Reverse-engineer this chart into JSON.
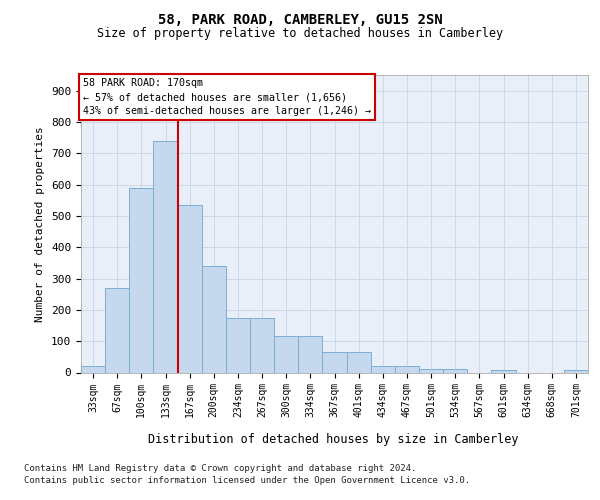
{
  "title": "58, PARK ROAD, CAMBERLEY, GU15 2SN",
  "subtitle": "Size of property relative to detached houses in Camberley",
  "xlabel": "Distribution of detached houses by size in Camberley",
  "ylabel": "Number of detached properties",
  "bin_labels": [
    "33sqm",
    "67sqm",
    "100sqm",
    "133sqm",
    "167sqm",
    "200sqm",
    "234sqm",
    "267sqm",
    "300sqm",
    "334sqm",
    "367sqm",
    "401sqm",
    "434sqm",
    "467sqm",
    "501sqm",
    "534sqm",
    "567sqm",
    "601sqm",
    "634sqm",
    "668sqm",
    "701sqm"
  ],
  "bar_values": [
    20,
    270,
    590,
    740,
    535,
    340,
    175,
    175,
    118,
    118,
    65,
    65,
    20,
    20,
    10,
    10,
    0,
    8,
    0,
    0,
    8
  ],
  "bar_color": "#c5d8ee",
  "bar_edge_color": "#7bafd4",
  "ref_line_color": "#cc0000",
  "annotation_box_edge_color": "#cc0000",
  "grid_color": "#ccd8e8",
  "background_color": "#e8eff8",
  "ylim": [
    0,
    950
  ],
  "yticks": [
    0,
    100,
    200,
    300,
    400,
    500,
    600,
    700,
    800,
    900
  ],
  "ref_line_label": "58 PARK ROAD: 170sqm",
  "annotation_line1": "← 57% of detached houses are smaller (1,656)",
  "annotation_line2": "43% of semi-detached houses are larger (1,246) →",
  "footnote1": "Contains HM Land Registry data © Crown copyright and database right 2024.",
  "footnote2": "Contains public sector information licensed under the Open Government Licence v3.0."
}
